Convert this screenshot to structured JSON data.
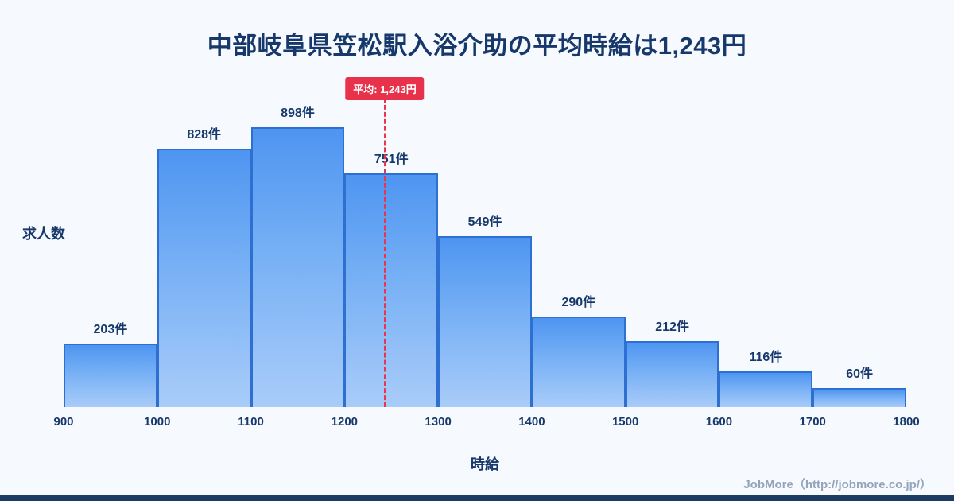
{
  "title": "中部岐阜県笠松駅入浴介助の平均時給は1,243円",
  "y_axis_label": "求人数",
  "x_axis_label": "時給",
  "average_badge_label": "平均: 1,243円",
  "credit": "JobMore（http://jobmore.co.jp/）",
  "colors": {
    "background": "#f6f9fd",
    "title_text": "#17386b",
    "bar_gradient_top": "#4e95f1",
    "bar_gradient_bottom": "#a9ccf9",
    "bar_border": "#2e6fd2",
    "average_line": "#e8364d",
    "average_badge_bg": "#e8324b",
    "credit_text": "#94a4ba",
    "bottom_strip": "#1d3c64"
  },
  "chart_data": {
    "type": "bar",
    "subtype": "histogram",
    "title": "中部岐阜県笠松駅入浴介助の平均時給は1,243円",
    "xlabel": "時給",
    "ylabel": "求人数",
    "xlim": [
      900,
      1800
    ],
    "x_ticks": [
      900,
      1000,
      1100,
      1200,
      1300,
      1400,
      1500,
      1600,
      1700,
      1800
    ],
    "average": 1243,
    "grid": false,
    "legend": "none",
    "bins": [
      {
        "range": [
          900,
          1000
        ],
        "count": 203,
        "label": "203件"
      },
      {
        "range": [
          1000,
          1100
        ],
        "count": 828,
        "label": "828件"
      },
      {
        "range": [
          1100,
          1200
        ],
        "count": 898,
        "label": "898件"
      },
      {
        "range": [
          1200,
          1300
        ],
        "count": 751,
        "label": "751件"
      },
      {
        "range": [
          1300,
          1400
        ],
        "count": 549,
        "label": "549件"
      },
      {
        "range": [
          1400,
          1500
        ],
        "count": 290,
        "label": "290件"
      },
      {
        "range": [
          1500,
          1600
        ],
        "count": 212,
        "label": "212件"
      },
      {
        "range": [
          1600,
          1700
        ],
        "count": 116,
        "label": "116件"
      },
      {
        "range": [
          1700,
          1800
        ],
        "count": 60,
        "label": "60件"
      }
    ]
  }
}
